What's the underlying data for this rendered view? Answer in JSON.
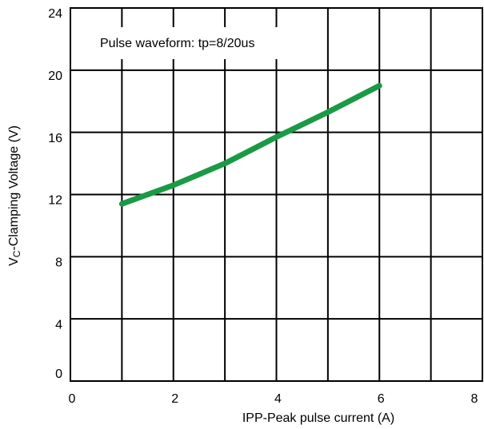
{
  "chart_data": {
    "type": "line",
    "annotation": "Pulse waveform: tp=8/20us",
    "xlabel": "IPP-Peak pulse current (A)",
    "ylabel": {
      "main": "V",
      "sub": "C",
      "rest": "-Clamping Voltage (V)"
    },
    "x": [
      1,
      2,
      3,
      4,
      5,
      6
    ],
    "series": [
      {
        "color": "#1a9a45",
        "values": [
          11.4,
          12.6,
          14.0,
          15.7,
          17.3,
          19.0
        ]
      }
    ],
    "xlim": [
      0,
      8
    ],
    "xticks": [
      0,
      2,
      4,
      6,
      8
    ],
    "xminor_ticks": [
      1,
      3,
      5,
      7
    ],
    "ylim": [
      0,
      24
    ],
    "yticks": [
      0,
      4,
      8,
      12,
      16,
      20,
      24
    ],
    "grid": true
  }
}
